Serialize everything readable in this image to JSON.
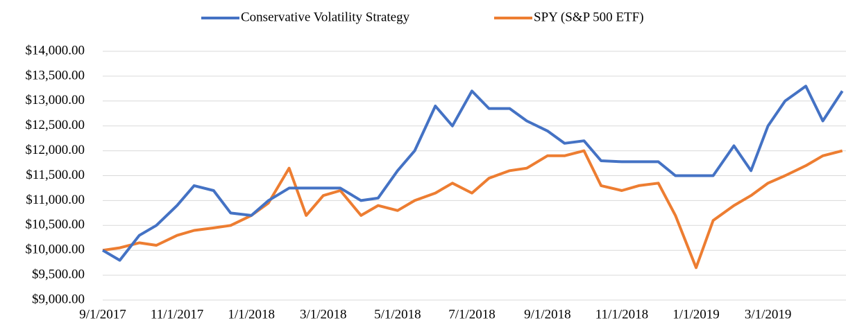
{
  "chart_data": {
    "type": "line",
    "x": [
      "9/1/2017",
      "9/15/2017",
      "10/1/2017",
      "10/15/2017",
      "11/1/2017",
      "11/15/2017",
      "12/1/2017",
      "12/15/2017",
      "1/1/2018",
      "1/15/2018",
      "2/1/2018",
      "2/15/2018",
      "3/1/2018",
      "3/15/2018",
      "4/1/2018",
      "4/15/2018",
      "5/1/2018",
      "5/15/2018",
      "6/1/2018",
      "6/15/2018",
      "7/1/2018",
      "7/15/2018",
      "8/1/2018",
      "8/15/2018",
      "9/1/2018",
      "9/15/2018",
      "10/1/2018",
      "10/15/2018",
      "11/1/2018",
      "11/15/2018",
      "12/1/2018",
      "12/15/2018",
      "1/1/2019",
      "1/15/2019",
      "2/1/2019",
      "2/15/2019",
      "3/1/2019",
      "3/15/2019",
      "4/1/2019",
      "4/15/2019",
      "5/1/2019"
    ],
    "series": [
      {
        "name": "Conservative Volatility Strategy",
        "color": "#4472c4",
        "values": [
          10000,
          9800,
          10300,
          10500,
          10900,
          11300,
          11200,
          10750,
          10700,
          11000,
          11250,
          11250,
          11250,
          11250,
          11000,
          11050,
          11600,
          12000,
          12900,
          12500,
          13200,
          12850,
          12850,
          12600,
          12400,
          12150,
          12200,
          11800,
          11780,
          11780,
          11780,
          11500,
          11500,
          11500,
          12100,
          11600,
          12500,
          13000,
          13300,
          12600,
          13200
        ]
      },
      {
        "name": "SPY (S&P 500 ETF)",
        "color": "#ed7d31",
        "values": [
          10000,
          10050,
          10150,
          10100,
          10300,
          10400,
          10450,
          10500,
          10700,
          10950,
          11650,
          10700,
          11100,
          11200,
          10700,
          10900,
          10800,
          11000,
          11150,
          11350,
          11150,
          11450,
          11600,
          11650,
          11900,
          11900,
          12000,
          11300,
          11200,
          11300,
          11350,
          10700,
          9650,
          10600,
          10900,
          11100,
          11350,
          11500,
          11700,
          11900,
          12000
        ]
      }
    ],
    "xlim": [
      "9/1/2017",
      "5/4/2019"
    ],
    "xticks": [
      "9/1/2017",
      "11/1/2017",
      "1/1/2018",
      "3/1/2018",
      "5/1/2018",
      "7/1/2018",
      "9/1/2018",
      "11/1/2018",
      "1/1/2019",
      "3/1/2019"
    ],
    "ylim": [
      9000,
      14000
    ],
    "yticks": [
      {
        "value": 9000,
        "label": "$9,000.00"
      },
      {
        "value": 9500,
        "label": "$9,500.00"
      },
      {
        "value": 10000,
        "label": "$10,000.00"
      },
      {
        "value": 10500,
        "label": "$10,500.00"
      },
      {
        "value": 11000,
        "label": "$11,000.00"
      },
      {
        "value": 11500,
        "label": "$11,500.00"
      },
      {
        "value": 12000,
        "label": "$12,000.00"
      },
      {
        "value": 12500,
        "label": "$12,500.00"
      },
      {
        "value": 13000,
        "label": "$13,000.00"
      },
      {
        "value": 13500,
        "label": "$13,500.00"
      },
      {
        "value": 14000,
        "label": "$14,000.00"
      }
    ],
    "grid": true,
    "legend": "top"
  }
}
